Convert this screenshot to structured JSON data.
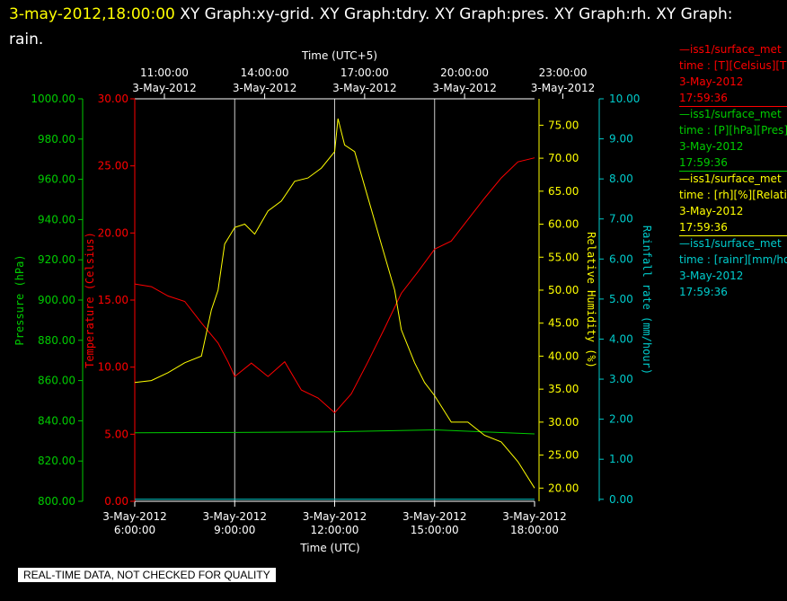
{
  "header": {
    "timestamp": "3-may-2012,18:00:00",
    "rest": "  XY Graph:xy-grid.  XY Graph:tdry.  XY Graph:pres.  XY Graph:rh.  XY Graph: rain."
  },
  "disclaimer": "REAL-TIME DATA, NOT CHECKED FOR QUALITY",
  "colors": {
    "pressure": "#00cc00",
    "temperature": "#ff0000",
    "rh": "#ffff00",
    "rain": "#00cccc",
    "grid": "#ffffff"
  },
  "chart_data": {
    "type": "line",
    "top_axis": {
      "label": "Time (UTC+5)",
      "ticks": [
        {
          "time": "11:00:00",
          "date": "3-May-2012"
        },
        {
          "time": "14:00:00",
          "date": "3-May-2012"
        },
        {
          "time": "17:00:00",
          "date": "3-May-2012"
        },
        {
          "time": "20:00:00",
          "date": "3-May-2012"
        },
        {
          "time": "23:00:00",
          "date": "3-May-2012"
        }
      ]
    },
    "bottom_axis": {
      "label": "Time (UTC)",
      "ticks": [
        {
          "date": "3-May-2012",
          "time": "6:00:00"
        },
        {
          "date": "3-May-2012",
          "time": "9:00:00"
        },
        {
          "date": "3-May-2012",
          "time": "12:00:00"
        },
        {
          "date": "3-May-2012",
          "time": "15:00:00"
        },
        {
          "date": "3-May-2012",
          "time": "18:00:00"
        }
      ],
      "range_hours": [
        6,
        18
      ]
    },
    "y_axes": {
      "pressure": {
        "label": "Pressure (hPa)",
        "range": [
          800,
          1000
        ],
        "ticks": [
          "800.00",
          "820.00",
          "840.00",
          "860.00",
          "880.00",
          "900.00",
          "920.00",
          "940.00",
          "960.00",
          "980.00",
          "1000.00"
        ]
      },
      "temperature": {
        "label": "Temperature (Celsius)",
        "range": [
          0,
          30
        ],
        "ticks": [
          "0.00",
          "5.00",
          "10.00",
          "15.00",
          "20.00",
          "25.00",
          "30.00"
        ]
      },
      "rh": {
        "label": "Relative Humidity (%)",
        "range": [
          18,
          79
        ],
        "ticks": [
          "20.00",
          "25.00",
          "30.00",
          "35.00",
          "40.00",
          "45.00",
          "50.00",
          "55.00",
          "60.00",
          "65.00",
          "70.00",
          "75.00"
        ]
      },
      "rain": {
        "label": "Rainfall rate (mm/hour)",
        "range": [
          -0.05,
          10
        ],
        "ticks": [
          "0.00",
          "1.00",
          "2.00",
          "3.00",
          "4.00",
          "5.00",
          "6.00",
          "7.00",
          "8.00",
          "9.00",
          "10.00"
        ]
      }
    },
    "series": [
      {
        "key": "temperature",
        "hours": [
          6,
          6.5,
          7,
          7.5,
          8,
          8.5,
          8.8,
          9,
          9.5,
          10,
          10.5,
          11,
          11.5,
          12,
          12.5,
          13,
          13.5,
          14,
          14.5,
          15,
          15.5,
          16,
          16.5,
          17,
          17.5,
          18
        ],
        "values": [
          16.2,
          16.0,
          15.3,
          14.9,
          13.3,
          11.8,
          10.4,
          9.3,
          10.3,
          9.3,
          10.4,
          8.3,
          7.7,
          6.6,
          8.0,
          10.4,
          12.9,
          15.5,
          17.1,
          18.8,
          19.4,
          21.0,
          22.6,
          24.1,
          25.3,
          25.6
        ]
      },
      {
        "key": "pressure",
        "hours": [
          6,
          9,
          12,
          15,
          18
        ],
        "values": [
          834.0,
          834.2,
          834.5,
          835.5,
          833.5
        ]
      },
      {
        "key": "rh",
        "hours": [
          6,
          6.5,
          7,
          7.5,
          8,
          8.3,
          8.5,
          8.7,
          9,
          9.3,
          9.6,
          10,
          10.4,
          10.8,
          11.2,
          11.6,
          12,
          12.1,
          12.3,
          12.6,
          13,
          13.4,
          13.8,
          14,
          14.4,
          14.7,
          15,
          15.5,
          16,
          16.5,
          17,
          17.5,
          18
        ],
        "values": [
          36.0,
          36.3,
          37.5,
          39.0,
          40.0,
          47.0,
          50.0,
          57.0,
          59.5,
          60.0,
          58.5,
          62.0,
          63.5,
          66.5,
          67.0,
          68.5,
          71.0,
          76.0,
          72.0,
          71.0,
          64.0,
          57.0,
          50.0,
          44.0,
          39.0,
          36.0,
          34.0,
          30.0,
          30.0,
          28.0,
          27.0,
          24.0,
          20.0
        ]
      },
      {
        "key": "rain",
        "hours": [
          6,
          18
        ],
        "values": [
          0.0,
          0.0
        ]
      }
    ]
  },
  "legend": [
    {
      "name": "iss1/surface_met",
      "unit": "time : [T][Celsius][Tdry]",
      "date": "3-May-2012",
      "time": "17:59:36",
      "color": "#ff0000"
    },
    {
      "name": "iss1/surface_met",
      "unit": "time : [P][hPa][Pres]",
      "date": "3-May-2012",
      "time": "17:59:36",
      "color": "#00cc00"
    },
    {
      "name": "iss1/surface_met",
      "unit": "time : [rh][%][Relative]",
      "date": "3-May-2012",
      "time": "17:59:36",
      "color": "#ffff00"
    },
    {
      "name": "iss1/surface_met",
      "unit": "time : [rainr][mm/hour]",
      "date": "3-May-2012",
      "time": "17:59:36",
      "color": "#00cccc"
    }
  ]
}
